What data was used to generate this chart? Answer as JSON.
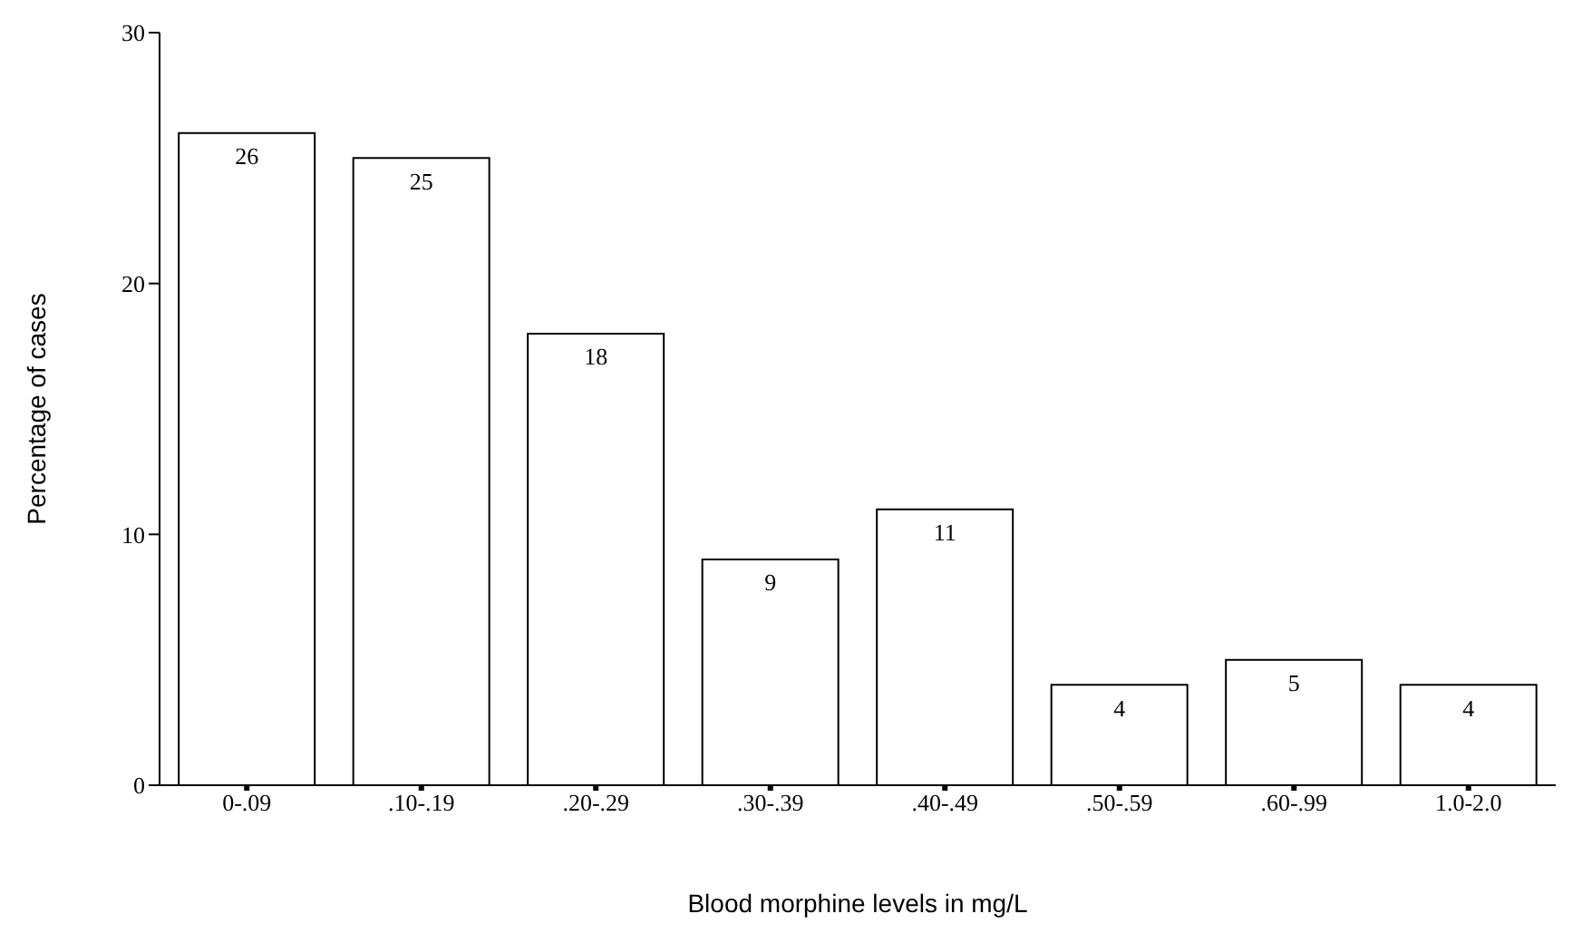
{
  "chart_data": {
    "type": "bar",
    "xlabel": "Blood morphine levels in mg/L",
    "ylabel": "Percentage of cases",
    "categories": [
      "0-.09",
      ".10-.19",
      ".20-.29",
      ".30-.39",
      ".40-.49",
      ".50-.59",
      ".60-.99",
      "1.0-2.0"
    ],
    "values": [
      26,
      25,
      18,
      9,
      11,
      4,
      5,
      4
    ],
    "color": "#ffffff",
    "ylim": [
      0,
      30
    ],
    "yticks": [
      0,
      10,
      20,
      30
    ],
    "grid": false,
    "data_labels": true
  }
}
